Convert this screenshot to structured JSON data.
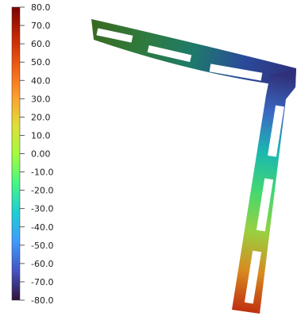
{
  "colorbar": {
    "tick_labels": [
      "80.0",
      "70.0",
      "60.0",
      "50.0",
      "40.0",
      "30.0",
      "20.0",
      "10.0",
      "0.00",
      "-10.0",
      "-20.0",
      "-30.0",
      "-40.0",
      "-50.0",
      "-60.0",
      "-70.0",
      "-80.0"
    ],
    "gradient_stops": [
      "#7a0403",
      "#c42503",
      "#f05b12",
      "#fe9b2d",
      "#e1dd37",
      "#a4fc3c",
      "#46f884",
      "#1bcfd4",
      "#3e9bfe",
      "#4454c4",
      "#30123b"
    ]
  },
  "frame": {
    "color_key": {
      "horizontal_member": [
        "#3a6a22",
        "#2f7a3c",
        "#1e7a6a",
        "#2a4a9a",
        "#30307a"
      ],
      "vertical_member": [
        "#30307a",
        "#3a6ac4",
        "#1bb8b0",
        "#44d870",
        "#9ad040",
        "#d88a20",
        "#c03010"
      ]
    }
  }
}
